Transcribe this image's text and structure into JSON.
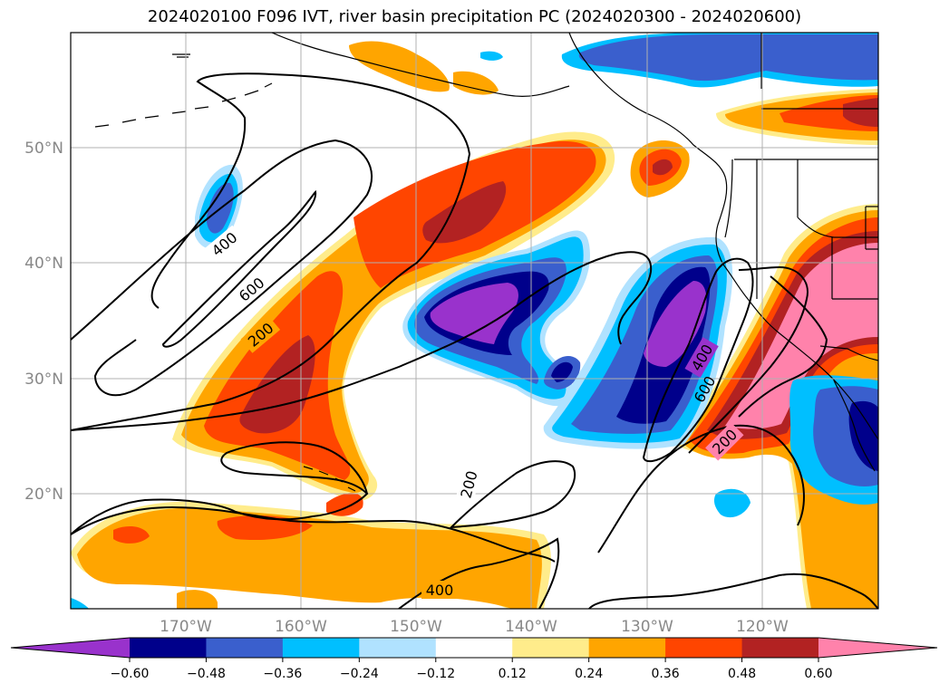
{
  "title": "2024020100 F096 IVT, river basin precipitation PC (2024020300 - 2024020600)",
  "map": {
    "lat_labels": [
      "50°N",
      "40°N",
      "30°N",
      "20°N"
    ],
    "lon_labels": [
      "170°W",
      "160°W",
      "150°W",
      "140°W",
      "130°W",
      "120°W"
    ],
    "contour_labels": [
      "400",
      "600",
      "200",
      "400",
      "600",
      "200",
      "200",
      "400"
    ]
  },
  "colorbar": {
    "colors": [
      "#9932cc",
      "#00008b",
      "#3a5fcd",
      "#00bfff",
      "#b0e2ff",
      "#ffffff",
      "#ffec8b",
      "#ffa500",
      "#ff4500",
      "#b22222",
      "#ff82ab"
    ],
    "ticks": [
      "−0.60",
      "−0.48",
      "−0.36",
      "−0.24",
      "−0.12",
      "0.12",
      "0.24",
      "0.36",
      "0.48",
      "0.60"
    ]
  }
}
